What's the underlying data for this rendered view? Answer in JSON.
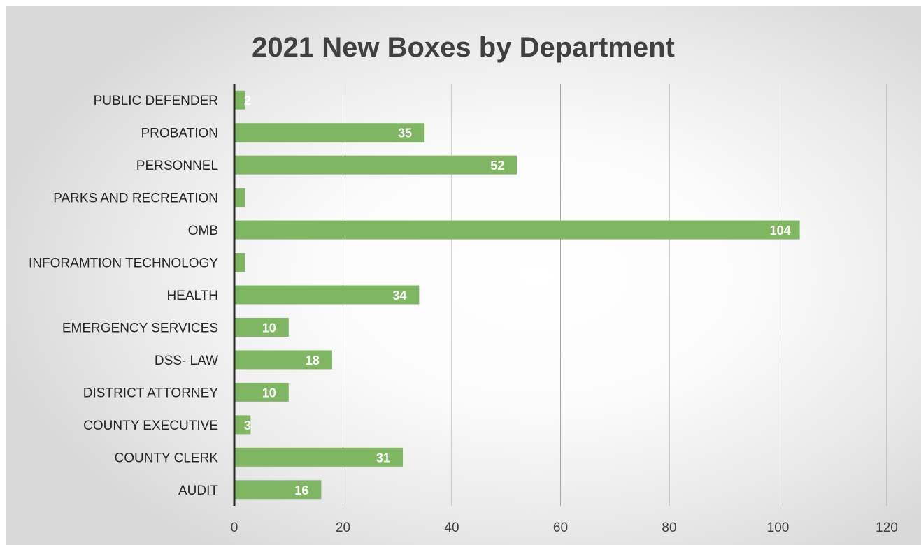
{
  "chart_data": {
    "type": "bar",
    "orientation": "horizontal",
    "title": "2021 New Boxes by Department",
    "xlabel": "",
    "ylabel": "",
    "categories": [
      "PUBLIC DEFENDER",
      "PROBATION",
      "PERSONNEL",
      "PARKS AND RECREATION",
      "OMB",
      "INFORAMTION TECHNOLOGY",
      "HEALTH",
      "EMERGENCY SERVICES",
      "DSS- LAW",
      "DISTRICT ATTORNEY",
      "COUNTY EXECUTIVE",
      "COUNTY CLERK",
      "AUDIT"
    ],
    "values": [
      2,
      35,
      52,
      2,
      104,
      2,
      34,
      10,
      18,
      10,
      3,
      31,
      16
    ],
    "data_labels": [
      "2",
      "35",
      "52",
      "",
      "104",
      "",
      "34",
      "10",
      "18",
      "10",
      "3",
      "31",
      "16"
    ],
    "xlim": [
      0,
      120
    ],
    "xticks": [
      0,
      20,
      40,
      60,
      80,
      100,
      120
    ],
    "grid": "vertical",
    "legend": "none",
    "colors": {
      "bar": "#7fb661",
      "grid": "#a6a6a6",
      "axis": "#262626"
    }
  }
}
